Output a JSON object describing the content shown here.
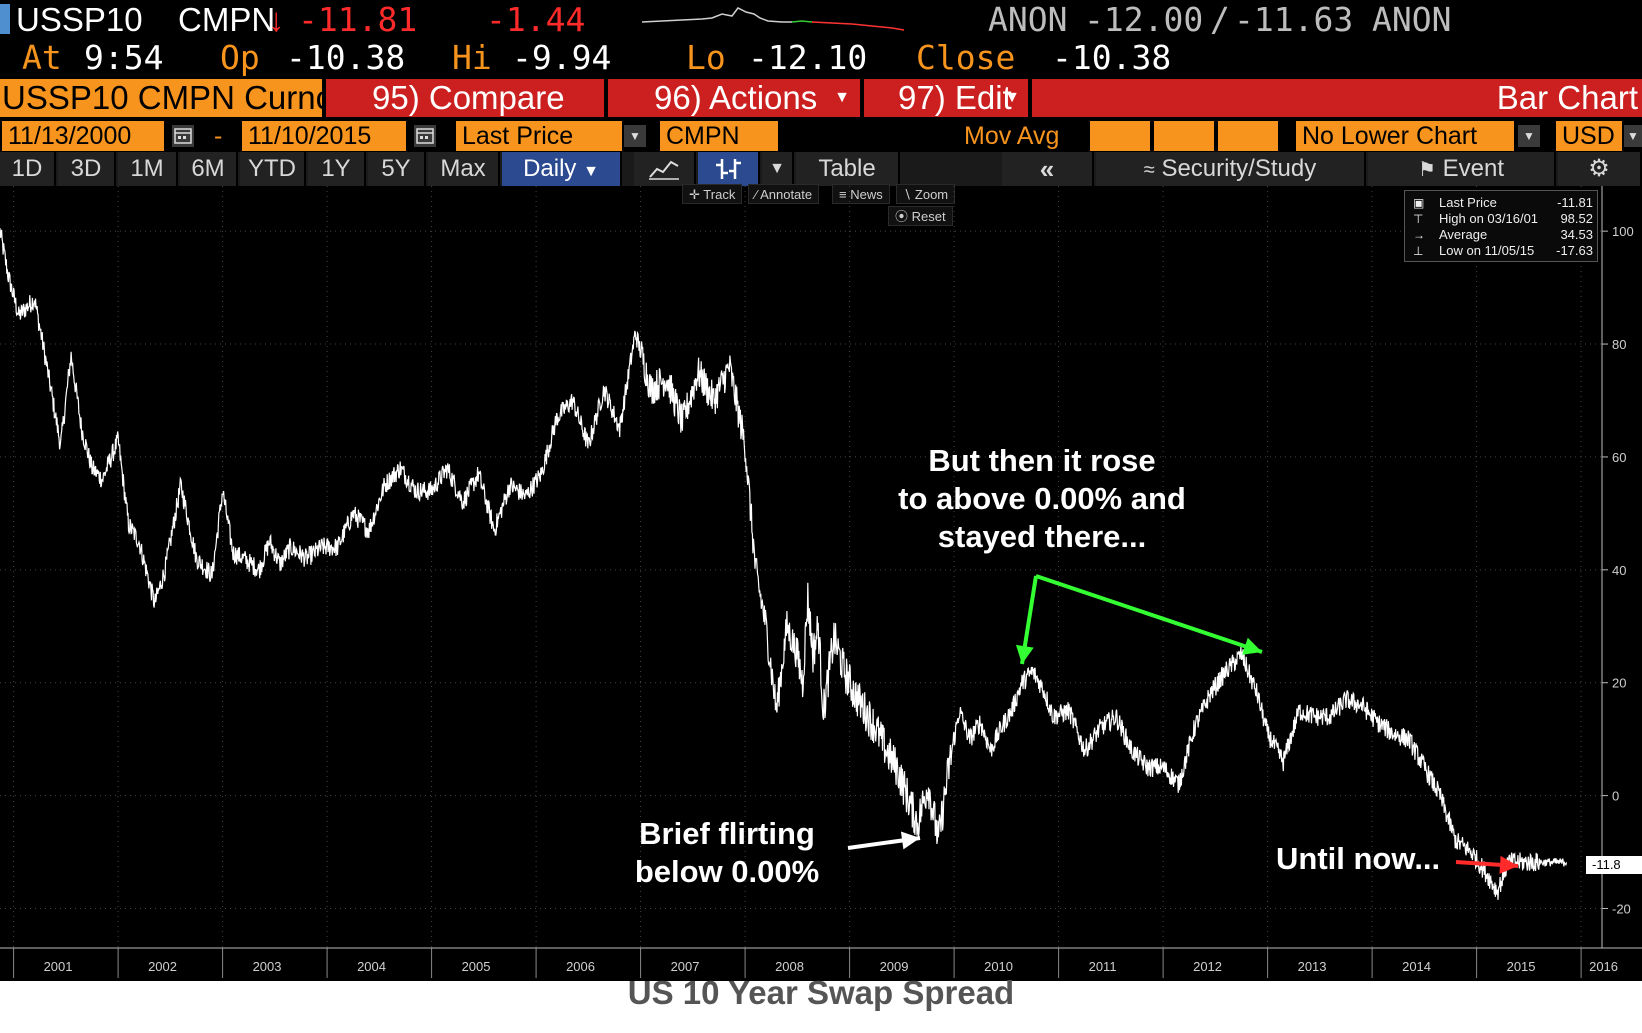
{
  "header": {
    "ticker": "USSP10",
    "source": "CMPN",
    "arrow": "↓",
    "last": "-11.81",
    "change": "-1.44",
    "bid_source": "ANON",
    "bid": "-12.00",
    "separator": "/",
    "ask": "-11.63",
    "ask_source": "ANON",
    "at_label": "At",
    "time": "9:54",
    "op_label": "Op",
    "open": "-10.38",
    "hi_label": "Hi",
    "high": "-9.94",
    "lo_label": "Lo",
    "low": "-12.10",
    "close_label": "Close",
    "close": "-10.38"
  },
  "menubar": {
    "security": "USSP10 CMPN Curnc",
    "compare": "95) Compare",
    "actions": "96) Actions",
    "edit": "97) Edit",
    "chart_type": "Bar Chart"
  },
  "controls": {
    "start_date": "11/13/2000",
    "dash": "-",
    "end_date": "11/10/2015",
    "price_field": "Last Price",
    "source_field": "CMPN",
    "mov_avg_label": "Mov Avg",
    "lower_chart": "No Lower Chart",
    "currency": "USD"
  },
  "tabs": [
    "1D",
    "3D",
    "1M",
    "6M",
    "YTD",
    "1Y",
    "5Y",
    "Max"
  ],
  "frequency": "Daily",
  "table_label": "Table",
  "security_study": "Security/Study",
  "event_label": "Event",
  "tools": {
    "track": "Track",
    "annotate": "Annotate",
    "news": "News",
    "zoom": "Zoom",
    "reset": "Reset"
  },
  "legend": {
    "rows": [
      {
        "name": "Last Price",
        "value": "-11.81"
      },
      {
        "name": "High on 03/16/01",
        "value": "98.52"
      },
      {
        "name": "Average",
        "value": "34.53"
      },
      {
        "name": "Low on 11/05/15",
        "value": "-17.63"
      }
    ]
  },
  "last_tag": "-11.8",
  "annotations": {
    "rose_line1": "But then it rose",
    "rose_line2": "to above 0.00% and",
    "rose_line3": "stayed there...",
    "brief_line1": "Brief flirting",
    "brief_line2": "below 0.00%",
    "until_now": "Until now..."
  },
  "caption": "US 10 Year Swap Spread",
  "colors": {
    "background": "#000000",
    "line": "#ffffff",
    "orange": "#f7941d",
    "red": "#ff2b2b",
    "menu_red": "#cc1f1f",
    "green_arrow": "#33ff33"
  },
  "chart_data": {
    "type": "line",
    "title": "US 10 Year Swap Spread",
    "xlabel": "",
    "ylabel": "",
    "x_ticks": [
      "2001",
      "2002",
      "2003",
      "2004",
      "2005",
      "2006",
      "2007",
      "2008",
      "2009",
      "2010",
      "2011",
      "2012",
      "2013",
      "2014",
      "2015",
      "2016"
    ],
    "y_ticks": [
      100,
      80,
      60,
      40,
      20,
      0,
      -20
    ],
    "ylim": [
      -27,
      108
    ],
    "xlim": [
      2000.87,
      2016.2
    ],
    "grid": true,
    "legend": "top-right",
    "series": [
      {
        "name": "Last Price",
        "x": [
          2000.87,
          2000.95,
          2001.05,
          2001.2,
          2001.3,
          2001.45,
          2001.55,
          2001.65,
          2001.75,
          2001.85,
          2002.0,
          2002.1,
          2002.2,
          2002.35,
          2002.45,
          2002.6,
          2002.75,
          2002.9,
          2003.0,
          2003.1,
          2003.2,
          2003.35,
          2003.45,
          2003.55,
          2003.65,
          2003.8,
          2003.95,
          2004.1,
          2004.25,
          2004.4,
          2004.55,
          2004.7,
          2004.85,
          2005.0,
          2005.15,
          2005.3,
          2005.45,
          2005.6,
          2005.75,
          2005.9,
          2006.05,
          2006.2,
          2006.35,
          2006.5,
          2006.65,
          2006.8,
          2006.95,
          2007.1,
          2007.25,
          2007.4,
          2007.55,
          2007.7,
          2007.85,
          2008.0,
          2008.1,
          2008.2,
          2008.3,
          2008.4,
          2008.5,
          2008.55,
          2008.6,
          2008.65,
          2008.7,
          2008.75,
          2008.85,
          2008.95,
          2009.05,
          2009.15,
          2009.25,
          2009.35,
          2009.45,
          2009.55,
          2009.65,
          2009.75,
          2009.85,
          2009.95,
          2010.05,
          2010.15,
          2010.25,
          2010.35,
          2010.45,
          2010.55,
          2010.65,
          2010.75,
          2010.85,
          2010.95,
          2011.1,
          2011.25,
          2011.4,
          2011.55,
          2011.7,
          2011.85,
          2012.0,
          2012.15,
          2012.3,
          2012.45,
          2012.6,
          2012.75,
          2012.9,
          2013.0,
          2013.15,
          2013.3,
          2013.45,
          2013.6,
          2013.75,
          2013.9,
          2014.05,
          2014.2,
          2014.35,
          2014.5,
          2014.65,
          2014.8,
          2014.95,
          2015.1,
          2015.2,
          2015.3,
          2015.4,
          2015.5,
          2015.6,
          2015.7,
          2015.75,
          2015.8,
          2015.86
        ],
        "y": [
          100,
          92,
          85,
          88,
          78,
          62,
          78,
          65,
          58,
          56,
          63,
          48,
          45,
          34,
          40,
          55,
          42,
          39,
          54,
          43,
          42,
          40,
          45,
          41,
          44,
          42,
          44,
          44,
          50,
          47,
          55,
          58,
          54,
          54,
          58,
          52,
          57,
          47,
          55,
          53,
          57,
          67,
          70,
          62,
          72,
          65,
          82,
          72,
          74,
          66,
          75,
          70,
          76,
          62,
          40,
          30,
          15,
          30,
          25,
          20,
          35,
          25,
          30,
          15,
          28,
          22,
          18,
          15,
          12,
          8,
          5,
          0,
          -5,
          2,
          -8,
          5,
          15,
          10,
          13,
          8,
          12,
          15,
          20,
          22,
          19,
          14,
          15,
          8,
          12,
          14,
          8,
          5,
          5,
          2,
          12,
          18,
          22,
          25,
          18,
          11,
          6,
          15,
          14,
          14,
          17,
          16,
          13,
          11,
          10,
          5,
          0,
          -8,
          -10,
          -14,
          -17,
          -11.81,
          -11.81,
          -11.81,
          -11.81,
          -11.81,
          -11.81,
          -11.81,
          -11.81
        ]
      }
    ]
  }
}
